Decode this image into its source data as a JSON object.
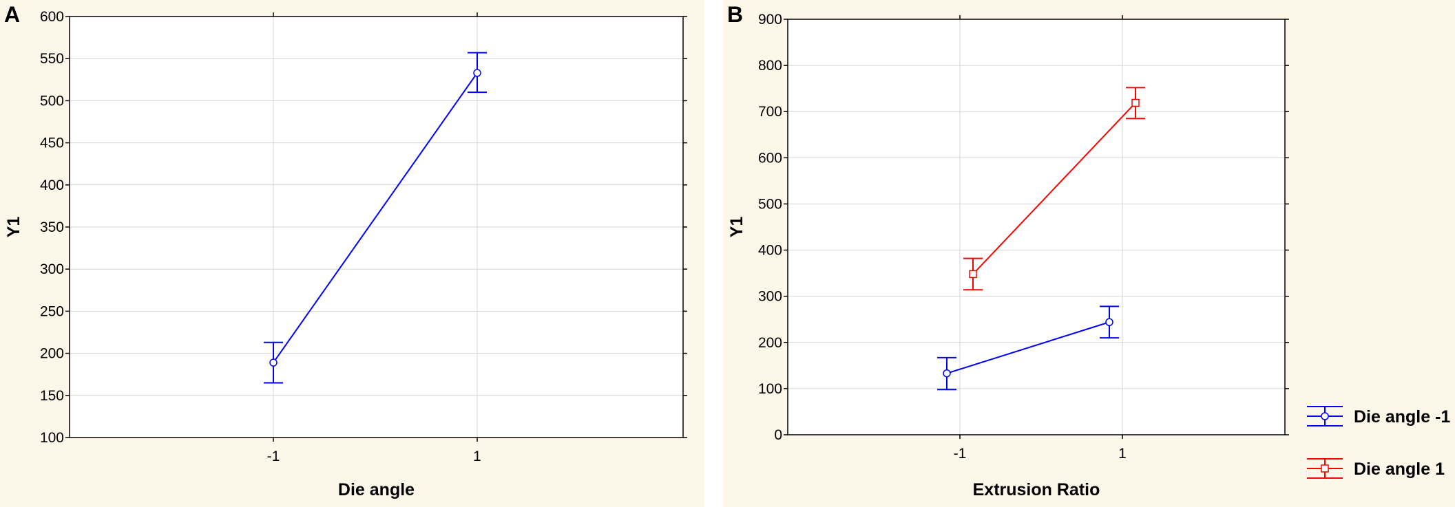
{
  "chart_data": [
    {
      "panel_label": "A",
      "type": "line",
      "xlabel": "Die angle",
      "ylabel": "Y1",
      "x_ticks": [
        "-1",
        "1"
      ],
      "ylim": [
        100,
        600
      ],
      "y_ticks": [
        100,
        150,
        200,
        250,
        300,
        350,
        400,
        450,
        500,
        550,
        600
      ],
      "grid": true,
      "series": [
        {
          "name": "",
          "color": "#0000ff",
          "marker": "circle",
          "points": [
            {
              "x": "-1",
              "y": 189,
              "err_low": 165,
              "err_high": 213
            },
            {
              "x": "1",
              "y": 533,
              "err_low": 510,
              "err_high": 557
            }
          ]
        }
      ]
    },
    {
      "panel_label": "B",
      "type": "line",
      "xlabel": "Extrusion Ratio",
      "ylabel": "Y1",
      "x_ticks": [
        "-1",
        "1"
      ],
      "ylim": [
        0,
        900
      ],
      "y_ticks": [
        0,
        100,
        200,
        300,
        400,
        500,
        600,
        700,
        800,
        900
      ],
      "grid": true,
      "legend_position": "bottom-right, outside plot",
      "series": [
        {
          "name": "Die angle -1",
          "color": "#0000ff",
          "marker": "circle",
          "points": [
            {
              "x": "-1",
              "y": 133,
              "err_low": 98,
              "err_high": 167
            },
            {
              "x": "1",
              "y": 244,
              "err_low": 210,
              "err_high": 278
            }
          ]
        },
        {
          "name": "Die angle 1",
          "color": "#ff0000",
          "marker": "square",
          "points": [
            {
              "x": "-1",
              "y": 348,
              "err_low": 314,
              "err_high": 382
            },
            {
              "x": "1",
              "y": 719,
              "err_low": 685,
              "err_high": 752
            }
          ]
        }
      ]
    }
  ]
}
